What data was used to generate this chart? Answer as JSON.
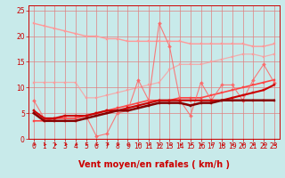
{
  "xlabel": "Vent moyen/en rafales ( km/h )",
  "xlim": [
    -0.5,
    23.5
  ],
  "ylim": [
    0,
    26
  ],
  "yticks": [
    0,
    5,
    10,
    15,
    20,
    25
  ],
  "xticks": [
    0,
    1,
    2,
    3,
    4,
    5,
    6,
    7,
    8,
    9,
    10,
    11,
    12,
    13,
    14,
    15,
    16,
    17,
    18,
    19,
    20,
    21,
    22,
    23
  ],
  "bg_color": "#c8eaea",
  "grid_color": "#e08080",
  "series": [
    {
      "x": [
        0,
        1,
        2,
        3,
        4,
        5,
        6,
        7,
        8,
        9,
        10,
        11,
        12,
        13,
        14,
        15,
        16,
        17,
        18,
        19,
        20,
        21,
        22,
        23
      ],
      "y": [
        22.5,
        22.0,
        21.5,
        21.0,
        20.5,
        20.0,
        20.0,
        19.5,
        19.5,
        19.0,
        19.0,
        19.0,
        19.0,
        19.0,
        19.0,
        18.5,
        18.5,
        18.5,
        18.5,
        18.5,
        18.5,
        18.0,
        18.0,
        18.5
      ],
      "color": "#ff9999",
      "lw": 1.0,
      "marker": "s",
      "ms": 1.8,
      "alpha": 1.0,
      "zorder": 2
    },
    {
      "x": [
        0,
        1,
        2,
        3,
        4,
        5,
        6,
        7,
        8,
        9,
        10,
        11,
        12,
        13,
        14,
        15,
        16,
        17,
        18,
        19,
        20,
        21,
        22,
        23
      ],
      "y": [
        11.0,
        11.0,
        11.0,
        11.0,
        11.0,
        8.0,
        8.0,
        8.5,
        9.0,
        9.5,
        10.0,
        10.5,
        11.0,
        13.5,
        14.5,
        14.5,
        14.5,
        15.0,
        15.5,
        16.0,
        16.5,
        16.5,
        16.0,
        16.5
      ],
      "color": "#ff9999",
      "lw": 0.9,
      "marker": "s",
      "ms": 1.8,
      "alpha": 0.75,
      "zorder": 2
    },
    {
      "x": [
        0,
        1,
        2,
        3,
        4,
        5,
        6,
        7,
        8,
        9,
        10,
        11,
        12,
        13,
        14,
        15,
        16,
        17,
        18,
        19,
        20,
        21,
        22,
        23
      ],
      "y": [
        3.5,
        3.5,
        4.0,
        4.0,
        4.0,
        4.5,
        5.0,
        5.5,
        6.0,
        6.5,
        7.0,
        7.5,
        7.5,
        7.5,
        8.0,
        8.0,
        8.0,
        8.5,
        9.0,
        9.5,
        10.0,
        10.5,
        11.0,
        11.5
      ],
      "color": "#ff4444",
      "lw": 1.2,
      "marker": "s",
      "ms": 1.8,
      "alpha": 1.0,
      "zorder": 3
    },
    {
      "x": [
        0,
        1,
        2,
        3,
        4,
        5,
        6,
        7,
        8,
        9,
        10,
        11,
        12,
        13,
        14,
        15,
        16,
        17,
        18,
        19,
        20,
        21,
        22,
        23
      ],
      "y": [
        5.5,
        4.0,
        4.0,
        4.5,
        4.5,
        4.5,
        5.0,
        5.5,
        5.5,
        6.0,
        6.5,
        7.0,
        7.5,
        7.5,
        7.5,
        7.5,
        7.5,
        7.5,
        7.5,
        8.0,
        8.5,
        9.0,
        9.5,
        10.5
      ],
      "color": "#cc0000",
      "lw": 1.5,
      "marker": "s",
      "ms": 2.0,
      "alpha": 1.0,
      "zorder": 4
    },
    {
      "x": [
        0,
        1,
        2,
        3,
        4,
        5,
        6,
        7,
        8,
        9,
        10,
        11,
        12,
        13,
        14,
        15,
        16,
        17,
        18,
        19,
        20,
        21,
        22,
        23
      ],
      "y": [
        7.5,
        4.0,
        4.0,
        4.5,
        4.5,
        4.5,
        0.5,
        1.0,
        5.0,
        5.5,
        11.5,
        7.5,
        22.5,
        18.0,
        7.5,
        4.5,
        11.0,
        7.5,
        10.5,
        10.5,
        7.5,
        11.5,
        14.5,
        11.0
      ],
      "color": "#ff6666",
      "lw": 0.8,
      "marker": "D",
      "ms": 2.0,
      "alpha": 0.85,
      "zorder": 3
    },
    {
      "x": [
        0,
        1,
        2,
        3,
        4,
        5,
        6,
        7,
        8,
        9,
        10,
        11,
        12,
        13,
        14,
        15,
        16,
        17,
        18,
        19,
        20,
        21,
        22,
        23
      ],
      "y": [
        5.0,
        3.5,
        3.5,
        3.5,
        3.5,
        4.0,
        4.5,
        5.0,
        5.5,
        5.5,
        6.0,
        6.5,
        7.0,
        7.0,
        7.0,
        6.5,
        7.0,
        7.0,
        7.5,
        7.5,
        7.5,
        7.5,
        7.5,
        7.5
      ],
      "color": "#880000",
      "lw": 1.8,
      "marker": "s",
      "ms": 2.0,
      "alpha": 1.0,
      "zorder": 5
    }
  ],
  "arrow_color": "#cc0000",
  "xlabel_fontsize": 7,
  "tick_fontsize": 5.5
}
